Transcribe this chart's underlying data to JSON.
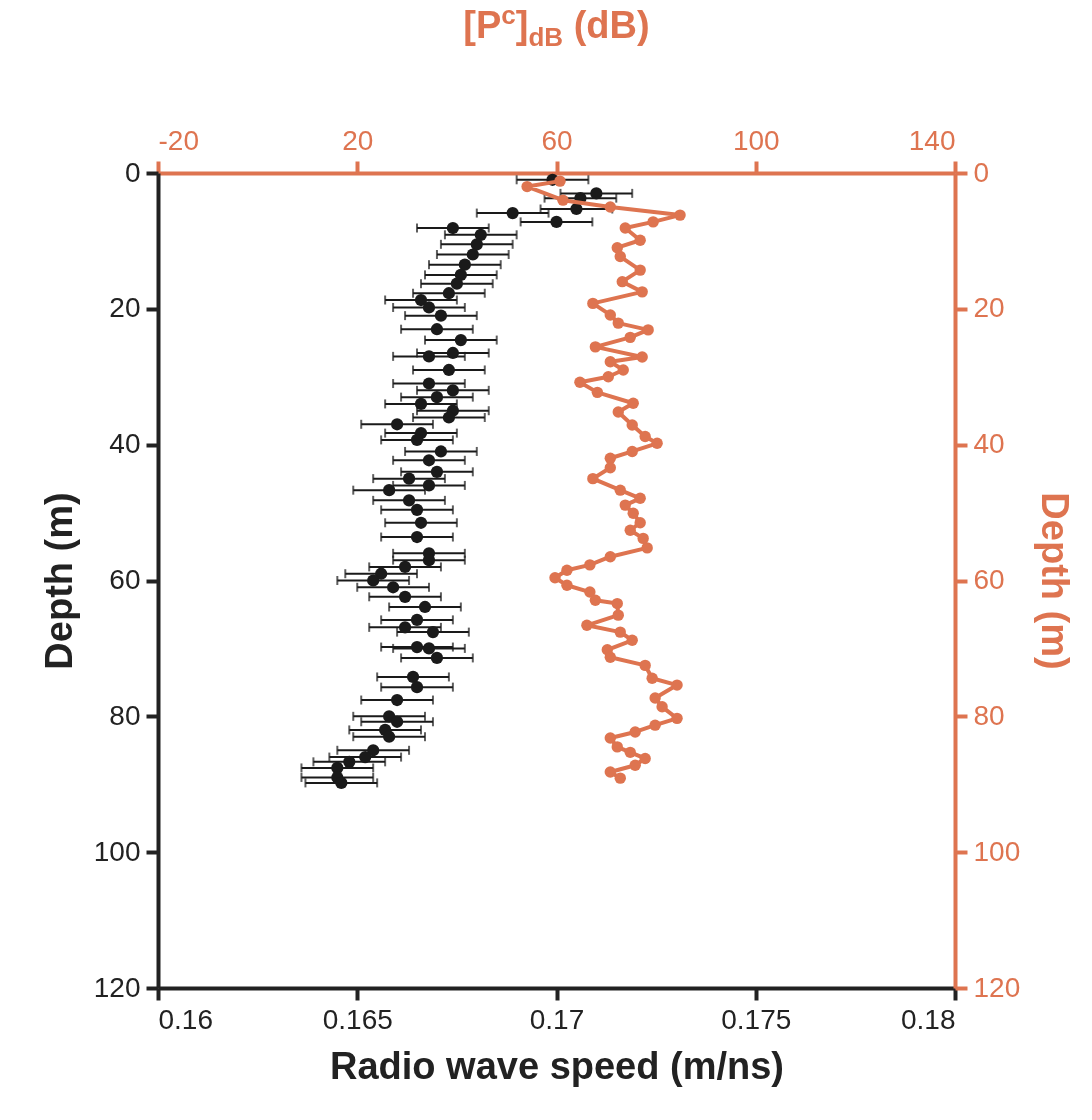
{
  "chart_data": {
    "type": "scatter",
    "xlabel": "Radio wave speed (m/ns)",
    "ylabel": "Depth (m)",
    "x2label": "[P$^{c}$]$_{dB}$ (dB)",
    "y2label": "Depth (m)",
    "xlim": [
      0.16,
      0.18
    ],
    "xticks": [
      0.16,
      0.165,
      0.17,
      0.175,
      0.18
    ],
    "x2lim": [
      -20,
      140
    ],
    "x2ticks": [
      -20,
      20,
      60,
      100,
      140
    ],
    "ylim": [
      120,
      0
    ],
    "yticks": [
      0,
      20,
      40,
      60,
      80,
      100,
      120
    ],
    "y2lim": [
      120,
      0
    ],
    "y2ticks": [
      0,
      20,
      40,
      60,
      80,
      100,
      120
    ],
    "series": [
      {
        "type": "scatter",
        "color": "#1a1a1a",
        "marker": "circle",
        "x": [
          0.1699,
          0.171,
          0.1706,
          0.1705,
          0.1689,
          0.17,
          0.1674,
          0.1681,
          0.168,
          0.1679,
          0.1677,
          0.1676,
          0.1675,
          0.1673,
          0.1666,
          0.1668,
          0.1671,
          0.167,
          0.1676,
          0.1674,
          0.1668,
          0.1673,
          0.1668,
          0.1674,
          0.167,
          0.1666,
          0.1674,
          0.1673,
          0.166,
          0.1666,
          0.1665,
          0.1671,
          0.1668,
          0.167,
          0.1663,
          0.1668,
          0.1658,
          0.1663,
          0.1665,
          0.1666,
          0.1665,
          0.1668,
          0.1668,
          0.1662,
          0.1656,
          0.1654,
          0.1659,
          0.1662,
          0.1667,
          0.1665,
          0.1662,
          0.1669,
          0.1665,
          0.1668,
          0.167,
          0.1664,
          0.1665,
          0.166,
          0.1658,
          0.166,
          0.1657,
          0.1658,
          0.1654,
          0.1652,
          0.1648,
          0.1645,
          0.1645,
          0.1646
        ],
        "values": [
          1,
          3,
          3.7,
          5.3,
          5.9,
          7.2,
          8.1,
          9.1,
          10.5,
          12,
          13.5,
          15,
          16.3,
          17.7,
          18.7,
          19.8,
          21,
          23,
          24.6,
          26.5,
          27,
          29,
          31,
          32,
          33,
          34,
          35,
          36,
          37,
          38.3,
          39.3,
          41,
          42.3,
          44,
          45,
          46,
          46.7,
          48.2,
          49.6,
          51.5,
          53.6,
          56,
          57,
          58,
          59,
          60,
          61,
          62.4,
          63.9,
          65.8,
          66.9,
          67.6,
          69.8,
          70,
          71.4,
          74.2,
          75.7,
          77.6,
          80,
          80.8,
          82,
          83,
          85,
          86,
          86.7,
          87.6,
          89,
          89.8
        ],
        "xerrors": [
          0.0009,
          0.0009,
          0.0009,
          0.0009,
          0.0009,
          0.0009,
          0.0009,
          0.0009,
          0.0009,
          0.0009,
          0.0009,
          0.0009,
          0.0009,
          0.0009,
          0.0009,
          0.0009,
          0.0009,
          0.0009,
          0.0009,
          0.0009,
          0.0009,
          0.0009,
          0.0009,
          0.0009,
          0.0009,
          0.0009,
          0.0009,
          0.0009,
          0.0009,
          0.0009,
          0.0009,
          0.0009,
          0.0009,
          0.0009,
          0.0009,
          0.0009,
          0.0009,
          0.0009,
          0.0009,
          0.0009,
          0.0009,
          0.0009,
          0.0009,
          0.0009,
          0.0009,
          0.0009,
          0.0009,
          0.0009,
          0.0009,
          0.0009,
          0.0009,
          0.0009,
          0.0009,
          0.0009,
          0.0009,
          0.0009,
          0.0009,
          0.0009,
          0.0009,
          0.0009,
          0.0009,
          0.0009,
          0.0009,
          0.0009,
          0.0009,
          0.0009,
          0.0009,
          0.0009
        ]
      },
      {
        "type": "line",
        "axis": "x2",
        "color": "#de7450",
        "marker": "circle",
        "line_style": "solid",
        "x": [
          60.7,
          54.1,
          61.3,
          70.8,
          84.8,
          79.4,
          73.8,
          76.8,
          72.2,
          72.8,
          76.8,
          73.2,
          77.2,
          67.3,
          70.8,
          72.4,
          78.4,
          74.8,
          67.8,
          77.2,
          70.8,
          73.4,
          70.4,
          64.7,
          68.2,
          75.4,
          72.4,
          75.2,
          77.8,
          80.2,
          75.2,
          70.8,
          70.8,
          67.3,
          72.8,
          76.8,
          73.8,
          75.4,
          76.8,
          74.8,
          77.4,
          78.2,
          70.8,
          66.7,
          62.1,
          59.7,
          62.1,
          66.7,
          67.8,
          72.2,
          72.4,
          66.1,
          72.8,
          75.2,
          70.2,
          70.8,
          77.8,
          79.2,
          84.2,
          79.8,
          81.2,
          84.2,
          79.8,
          75.8,
          70.8,
          72.2,
          74.8,
          77.8,
          75.8,
          70.8,
          72.8
        ],
        "values": [
          1.2,
          2,
          4,
          5,
          6.2,
          7.2,
          8.1,
          9.9,
          11,
          12.3,
          14.3,
          16,
          17.5,
          19.2,
          20.9,
          22.1,
          23.1,
          24.2,
          25.6,
          27.1,
          27.8,
          29,
          30,
          30.8,
          32.3,
          33.9,
          35.2,
          37.1,
          38.8,
          39.8,
          41,
          42,
          43.4,
          45,
          46.7,
          47.9,
          48.9,
          50.1,
          51.5,
          52.6,
          53.8,
          55.2,
          56.5,
          57.7,
          58.5,
          59.6,
          60.7,
          61.7,
          62.9,
          63.4,
          65.1,
          66.6,
          67.6,
          68.8,
          70.2,
          71.3,
          72.5,
          74.4,
          75.4,
          77.3,
          78.6,
          80.3,
          81.3,
          82.3,
          83.2,
          84.5,
          85.3,
          86.2,
          87.2,
          88.2,
          89.1
        ]
      }
    ]
  }
}
